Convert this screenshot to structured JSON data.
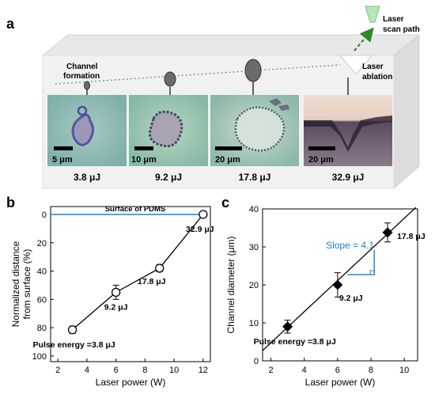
{
  "panel_a": {
    "label": "a",
    "laser_label_line1": "Laser",
    "laser_label_line2": "scan path",
    "channel_label_line1": "Channel",
    "channel_label_line2": "formation",
    "ablation_label_line1": "Laser",
    "ablation_label_line2": "ablation",
    "images": [
      {
        "scale": "5 μm",
        "energy": "3.8 μJ"
      },
      {
        "scale": "10 μm",
        "energy": "9.2 μJ"
      },
      {
        "scale": "20 μm",
        "energy": "17.8 μJ"
      },
      {
        "scale": "20 μm",
        "energy": "32.9 μJ"
      }
    ]
  },
  "chart_data": [
    {
      "panel": "b",
      "type": "line",
      "xlabel": "Laser power (W)",
      "ylabel_line1": "Normalized distance",
      "ylabel_line2": "from surface (%)",
      "xlim": [
        1.5,
        12.5
      ],
      "ylim": [
        0,
        104
      ],
      "y_inverted": true,
      "xticks": [
        2,
        4,
        6,
        8,
        10,
        12
      ],
      "yticks": [
        0,
        20,
        40,
        60,
        80,
        100
      ],
      "x": [
        3,
        6,
        9,
        12
      ],
      "y": [
        81.5,
        55,
        38,
        0
      ],
      "yerr": [
        2.5,
        5,
        2.5,
        0
      ],
      "point_labels": [
        "Pulse energy =3.8 μJ",
        "9.2 μJ",
        "17.8 μJ",
        "32.9 μJ"
      ],
      "reference_line": {
        "y": 0,
        "label": "Surface of PDMS",
        "color": "#1f7fd6"
      },
      "marker": "open-circle"
    },
    {
      "panel": "c",
      "type": "scatter",
      "xlabel": "Laser power (W)",
      "ylabel": "Channel diameter (μm)",
      "xlim": [
        1.5,
        10.8
      ],
      "ylim": [
        0,
        40
      ],
      "xticks": [
        2,
        4,
        6,
        8,
        10
      ],
      "yticks": [
        0,
        10,
        20,
        30,
        40
      ],
      "x": [
        3,
        6,
        9
      ],
      "y": [
        9,
        20,
        33.8
      ],
      "yerr": [
        1.7,
        3.2,
        2.5
      ],
      "point_labels": [
        "Pulse energy =3.8 μJ",
        "9.2 μJ",
        "17.8 μJ"
      ],
      "fit_line": {
        "x": [
          1.5,
          10.7
        ],
        "y": [
          2.7,
          40.4
        ]
      },
      "slope_annotation": {
        "text": "Slope = 4.1",
        "color": "#1f7fd6"
      },
      "marker": "filled-diamond"
    }
  ]
}
